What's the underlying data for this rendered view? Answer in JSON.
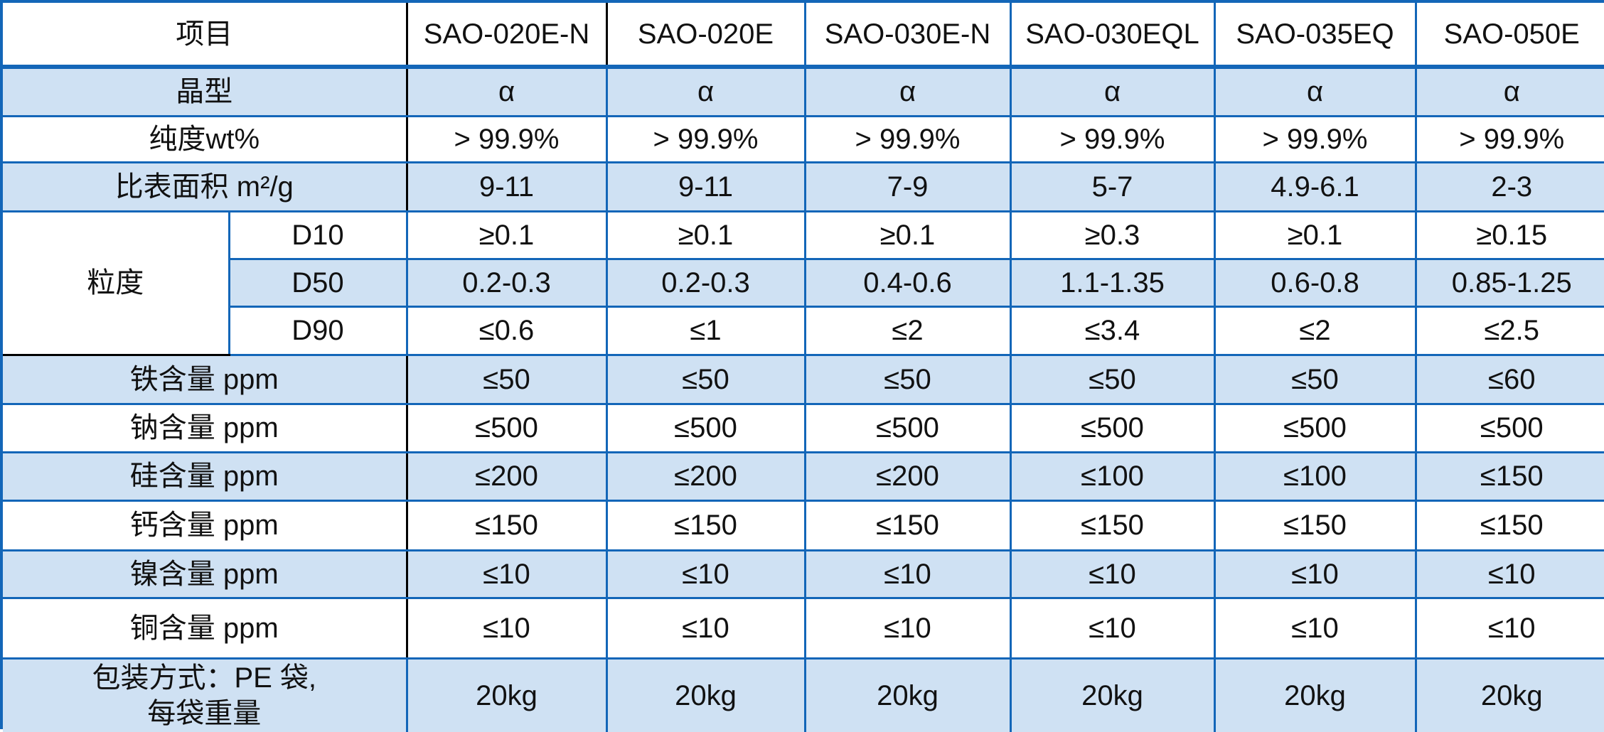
{
  "table": {
    "header": [
      "项目",
      "SAO-020E-N",
      "SAO-020E",
      "SAO-030E-N",
      "SAO-030EQL",
      "SAO-035EQ",
      "SAO-050E"
    ],
    "group_label": "粒度",
    "rows": [
      {
        "label": "晶型",
        "values": [
          "α",
          "α",
          "α",
          "α",
          "α",
          "α"
        ]
      },
      {
        "label": "纯度wt%",
        "values": [
          "> 99.9%",
          "> 99.9%",
          "> 99.9%",
          "> 99.9%",
          "> 99.9%",
          "> 99.9%"
        ]
      },
      {
        "label": "比表面积 m²/g",
        "values": [
          "9-11",
          "9-11",
          "7-9",
          "5-7",
          "4.9-6.1",
          "2-3"
        ]
      },
      {
        "sub": "D10",
        "values": [
          "≥0.1",
          "≥0.1",
          "≥0.1",
          "≥0.3",
          "≥0.1",
          "≥0.15"
        ]
      },
      {
        "sub": "D50",
        "values": [
          "0.2-0.3",
          "0.2-0.3",
          "0.4-0.6",
          "1.1-1.35",
          "0.6-0.8",
          "0.85-1.25"
        ]
      },
      {
        "sub": "D90",
        "values": [
          "≤0.6",
          "≤1",
          "≤2",
          "≤3.4",
          "≤2",
          "≤2.5"
        ]
      },
      {
        "label": "铁含量 ppm",
        "values": [
          "≤50",
          "≤50",
          "≤50",
          "≤50",
          "≤50",
          "≤60"
        ]
      },
      {
        "label": "钠含量 ppm",
        "values": [
          "≤500",
          "≤500",
          "≤500",
          "≤500",
          "≤500",
          "≤500"
        ]
      },
      {
        "label": "硅含量 ppm",
        "values": [
          "≤200",
          "≤200",
          "≤200",
          "≤100",
          "≤100",
          "≤150"
        ]
      },
      {
        "label": "钙含量 ppm",
        "values": [
          "≤150",
          "≤150",
          "≤150",
          "≤150",
          "≤150",
          "≤150"
        ]
      },
      {
        "label": "镍含量 ppm",
        "values": [
          "≤10",
          "≤10",
          "≤10",
          "≤10",
          "≤10",
          "≤10"
        ]
      },
      {
        "label": "铜含量 ppm",
        "values": [
          "≤10",
          "≤10",
          "≤10",
          "≤10",
          "≤10",
          "≤10"
        ]
      },
      {
        "label": "包装方式：PE 袋,\n每袋重量",
        "values": [
          "20kg",
          "20kg",
          "20kg",
          "20kg",
          "20kg",
          "20kg"
        ]
      }
    ]
  },
  "colors": {
    "grid_blue": "#1366b8",
    "grid_black": "#000000",
    "row_fill_blue": "#cfe1f3",
    "text": "#111111"
  }
}
